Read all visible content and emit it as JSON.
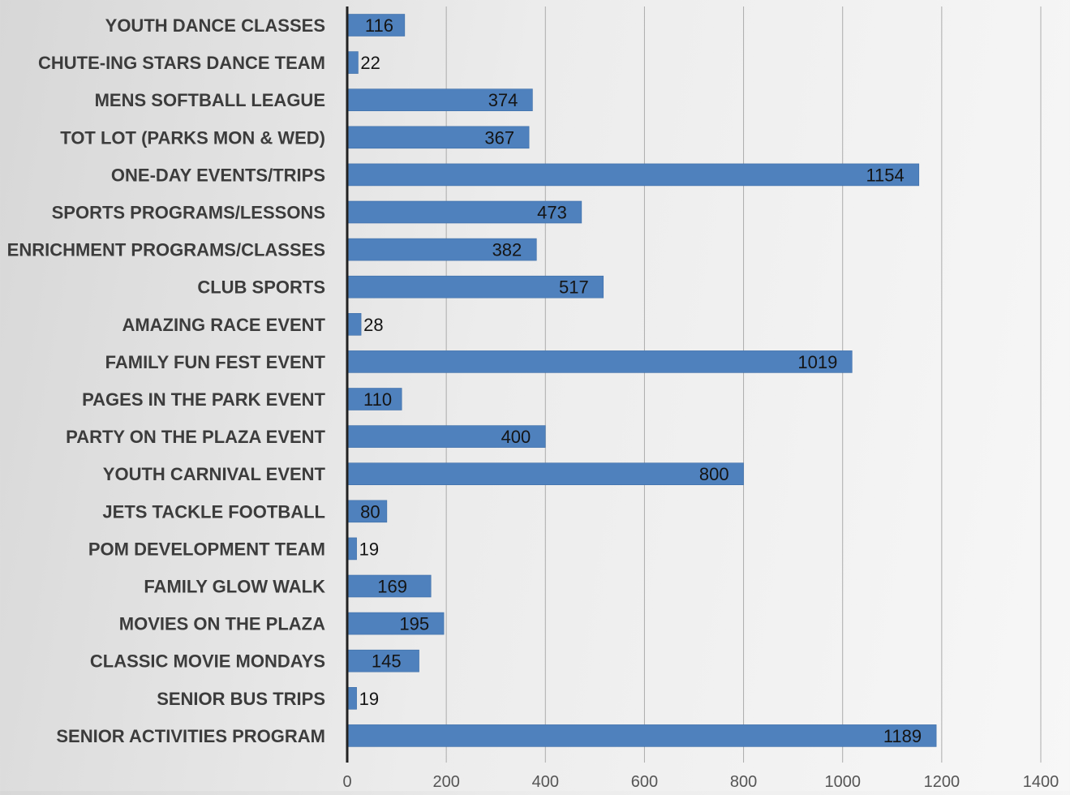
{
  "chart_data": {
    "type": "bar",
    "orientation": "horizontal",
    "categories": [
      "YOUTH DANCE CLASSES",
      "CHUTE-ING STARS DANCE TEAM",
      "MENS SOFTBALL LEAGUE",
      "TOT LOT (PARKS MON & WED)",
      "ONE-DAY EVENTS/TRIPS",
      "SPORTS PROGRAMS/LESSONS",
      "ENRICHMENT PROGRAMS/CLASSES",
      "CLUB SPORTS",
      "AMAZING RACE EVENT",
      "FAMILY FUN FEST EVENT",
      "PAGES IN THE PARK EVENT",
      "PARTY ON THE PLAZA EVENT",
      "YOUTH CARNIVAL EVENT",
      "JETS TACKLE FOOTBALL",
      "POM DEVELOPMENT TEAM",
      "FAMILY GLOW WALK",
      "MOVIES ON THE PLAZA",
      "CLASSIC MOVIE MONDAYS",
      "SENIOR BUS TRIPS",
      "SENIOR ACTIVITIES PROGRAM"
    ],
    "values": [
      116,
      22,
      374,
      367,
      1154,
      473,
      382,
      517,
      28,
      1019,
      110,
      400,
      800,
      80,
      19,
      169,
      195,
      145,
      19,
      1189
    ],
    "xlim": [
      0,
      1400
    ],
    "xticks": [
      0,
      200,
      400,
      600,
      800,
      1000,
      1200,
      1400
    ],
    "title": "",
    "xlabel": "",
    "ylabel": "",
    "grid": "vertical",
    "legend": "none",
    "colors": {
      "bar": "#4f81bd",
      "bar_edge": "#3f6fa8",
      "gridline": "#ababab",
      "axis": "#222222"
    }
  }
}
